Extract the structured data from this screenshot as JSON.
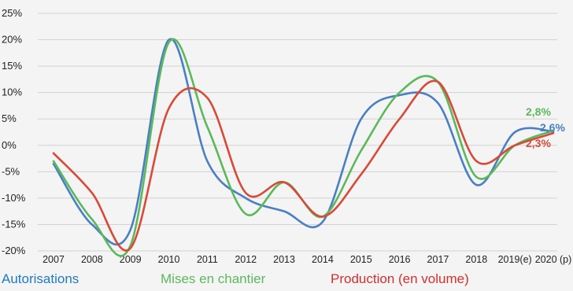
{
  "chart_data": {
    "type": "line",
    "x": [
      "2007",
      "2008",
      "2009",
      "2010",
      "2011",
      "2012",
      "2013",
      "2014",
      "2015",
      "2016",
      "2017",
      "2018",
      "2019(e)",
      "2020 (p)"
    ],
    "ylim": [
      -20,
      25
    ],
    "yticks": [
      -20,
      -15,
      -10,
      -5,
      0,
      5,
      10,
      15,
      20,
      25
    ],
    "ytick_labels": [
      "-20%",
      "-15%",
      "-10%",
      "-5%",
      "0%",
      "5%",
      "10%",
      "15%",
      "20%",
      "25%"
    ],
    "grid": true,
    "legend_position": "bottom",
    "series": [
      {
        "name": "Autorisations",
        "color": "#4a7fc1",
        "values": [
          -3.5,
          -15,
          -16,
          20,
          -3,
          -10,
          -12.5,
          -14.5,
          5,
          9.5,
          8,
          -7.5,
          2.5,
          2.6
        ],
        "end_label": "2,6%"
      },
      {
        "name": "Mises en chantier",
        "color": "#5cb85c",
        "values": [
          -3,
          -14,
          -19,
          19.5,
          3.5,
          -13,
          -7,
          -13.5,
          -1,
          10,
          12,
          -6,
          0,
          2.8
        ],
        "end_label": "2,8%"
      },
      {
        "name": "Production (en volume)",
        "color": "#d84a38",
        "values": [
          -1.5,
          -9,
          -19.5,
          7,
          9,
          -9,
          -7,
          -13.5,
          -5.5,
          5,
          12,
          -3,
          0,
          2.3
        ],
        "end_label": "2,3%"
      }
    ]
  },
  "legend": {
    "autorisations": "Autorisations",
    "mises_en_chantier": "Mises en chantier",
    "production": "Production (en volume)"
  },
  "colors": {
    "legend_autorisations": "#1f7bc0",
    "legend_mises": "#5cb85c",
    "legend_production": "#d42f2f",
    "grid": "#d2d2d2"
  }
}
